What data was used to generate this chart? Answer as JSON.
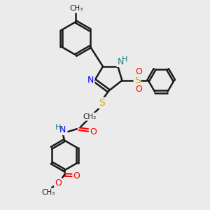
{
  "bg_color": "#ebebeb",
  "bond_color": "#1a1a1a",
  "bond_width": 1.8,
  "figsize": [
    3.0,
    3.0
  ],
  "dpi": 100,
  "xlim": [
    0,
    10
  ],
  "ylim": [
    0,
    10
  ]
}
